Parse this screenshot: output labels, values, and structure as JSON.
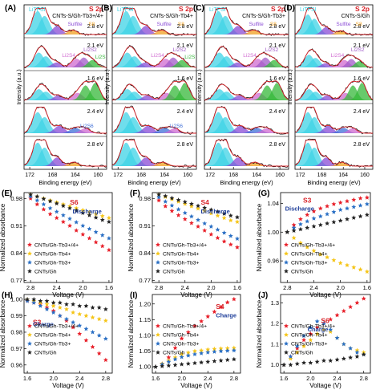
{
  "xps": {
    "ylabel": "Intensity (a.u.)",
    "xlabel": "Binding energy (eV)",
    "ticks": [
      "172",
      "168",
      "164",
      "160"
    ],
    "peak_labels": {
      "litfsi": "LiTFSI",
      "sulfite": "Sulfite",
      "s8": "S8",
      "li2s6": "Li2S6",
      "li2s4": "Li2S4",
      "li2s2": "Li2S2",
      "li2s": "Li2S"
    },
    "panels": [
      {
        "label": "(A)",
        "title": "S 2p",
        "sample": "CNTs-S/Gh-Tb3+/4+",
        "voltages": [
          "2.8 eV",
          "2.1 eV",
          "1.6 eV",
          "2.4 eV",
          "2.8 eV"
        ]
      },
      {
        "label": "(B)",
        "title": "S 2p",
        "sample": "CNTs-S/Gh-Tb4+",
        "voltages": [
          "2.8 eV",
          "2.1 eV",
          "1.6 eV",
          "2.4 eV",
          "2.8 eV"
        ]
      },
      {
        "label": "(C)",
        "title": "S 2p",
        "sample": "CNTs-S/Gh-Tb3+",
        "voltages": [
          "2.8 eV",
          "2.1 eV",
          "1.6 eV",
          "2.4 eV",
          "2.8 eV"
        ]
      },
      {
        "label": "(D)",
        "title": "S 2p",
        "sample": "CNTs-S/Gh",
        "voltages": [
          "2.8 eV",
          "2.1 eV",
          "1.6 eV",
          "2.4 eV",
          "2.8 eV"
        ]
      }
    ]
  },
  "colors": {
    "tb34": "#e8202a",
    "tb4": "#f5c518",
    "tb3": "#2a6fc4",
    "gh": "#222222",
    "litfsi": "#3fd3e6",
    "sulfite": "#8a4bd6",
    "s8": "#f0a020",
    "li2s6": "#3f6fd8",
    "li2s4": "#d06ad0",
    "li2s2": "#a05ac8",
    "li2s": "#36b83a"
  },
  "legend_labels": [
    "CNTs/Gh-Tb3+/4+",
    "CNTs/Gh-Tb4+",
    "CNTs/Gh-Tb3+",
    "CNTs/Gh"
  ],
  "chart_data": [
    {
      "label": "(E)",
      "type": "scatter",
      "ion": "S6",
      "process": "Discharge",
      "xlabel": "Voltage (V)",
      "ylabel": "Normalized absorbance",
      "xlim": [
        2.9,
        1.55
      ],
      "ylim": [
        0.765,
        0.995
      ],
      "xticks": [
        2.8,
        2.4,
        2.0,
        1.6
      ],
      "yticks": [
        0.77,
        0.84,
        0.91,
        0.98
      ],
      "series": [
        {
          "name": "CNTs/Gh-Tb3+/4+",
          "x": [
            2.8,
            2.7,
            2.6,
            2.5,
            2.4,
            2.3,
            2.2,
            2.1,
            2.0,
            1.9,
            1.8,
            1.7,
            1.6
          ],
          "y": [
            0.98,
            0.965,
            0.952,
            0.94,
            0.93,
            0.92,
            0.91,
            0.898,
            0.888,
            0.878,
            0.868,
            0.858,
            0.848
          ]
        },
        {
          "name": "CNTs/Gh-Tb4+",
          "x": [
            2.8,
            2.7,
            2.6,
            2.5,
            2.4,
            2.3,
            2.2,
            2.1,
            2.0,
            1.9,
            1.8,
            1.7,
            1.6
          ],
          "y": [
            0.99,
            0.985,
            0.98,
            0.975,
            0.97,
            0.965,
            0.96,
            0.955,
            0.95,
            0.945,
            0.94,
            0.935,
            0.93
          ]
        },
        {
          "name": "CNTs/Gh-Tb3+",
          "x": [
            2.8,
            2.7,
            2.6,
            2.5,
            2.4,
            2.3,
            2.2,
            2.1,
            2.0,
            1.9,
            1.8,
            1.7,
            1.6
          ],
          "y": [
            0.985,
            0.975,
            0.965,
            0.955,
            0.946,
            0.937,
            0.928,
            0.919,
            0.91,
            0.902,
            0.894,
            0.886,
            0.878
          ]
        },
        {
          "name": "CNTs/Gh",
          "x": [
            2.8,
            2.7,
            2.6,
            2.5,
            2.4,
            2.3,
            2.2,
            2.1,
            2.0,
            1.9,
            1.8,
            1.7,
            1.6
          ],
          "y": [
            0.99,
            0.985,
            0.979,
            0.973,
            0.967,
            0.961,
            0.955,
            0.949,
            0.943,
            0.937,
            0.931,
            0.925,
            0.92
          ]
        }
      ]
    },
    {
      "label": "(F)",
      "type": "scatter",
      "ion": "S4",
      "process": "Discharge",
      "xlabel": "Voltage (V)",
      "ylabel": "Normalized absorbance",
      "xlim": [
        2.9,
        1.55
      ],
      "ylim": [
        0.765,
        0.995
      ],
      "xticks": [
        2.8,
        2.4,
        2.0,
        1.6
      ],
      "yticks": [
        0.77,
        0.84,
        0.91,
        0.98
      ],
      "series": [
        {
          "name": "CNTs/Gh-Tb3+/4+",
          "x": [
            2.8,
            2.7,
            2.6,
            2.5,
            2.4,
            2.3,
            2.2,
            2.1,
            2.0,
            1.9,
            1.8,
            1.7,
            1.6
          ],
          "y": [
            0.975,
            0.96,
            0.948,
            0.937,
            0.927,
            0.917,
            0.908,
            0.898,
            0.888,
            0.879,
            0.87,
            0.862,
            0.855
          ]
        },
        {
          "name": "CNTs/Gh-Tb4+",
          "x": [
            2.8,
            2.7,
            2.6,
            2.5,
            2.4,
            2.3,
            2.2,
            2.1,
            2.0,
            1.9,
            1.8,
            1.7,
            1.6
          ],
          "y": [
            0.99,
            0.984,
            0.978,
            0.972,
            0.966,
            0.96,
            0.954,
            0.948,
            0.942,
            0.936,
            0.93,
            0.924,
            0.92
          ]
        },
        {
          "name": "CNTs/Gh-Tb3+",
          "x": [
            2.8,
            2.7,
            2.6,
            2.5,
            2.4,
            2.3,
            2.2,
            2.1,
            2.0,
            1.9,
            1.8,
            1.7,
            1.6
          ],
          "y": [
            0.983,
            0.972,
            0.962,
            0.952,
            0.943,
            0.934,
            0.925,
            0.916,
            0.908,
            0.9,
            0.892,
            0.884,
            0.877
          ]
        },
        {
          "name": "CNTs/Gh",
          "x": [
            2.8,
            2.7,
            2.6,
            2.5,
            2.4,
            2.3,
            2.2,
            2.1,
            2.0,
            1.9,
            1.8,
            1.7,
            1.6
          ],
          "y": [
            0.99,
            0.986,
            0.981,
            0.976,
            0.971,
            0.966,
            0.961,
            0.956,
            0.951,
            0.946,
            0.941,
            0.936,
            0.932
          ]
        }
      ]
    },
    {
      "label": "(G)",
      "type": "scatter",
      "ion": "S3",
      "process": "Discharge",
      "xlabel": "Voltage (V)",
      "ylabel": "Normalized absorbance",
      "xlim": [
        2.9,
        1.55
      ],
      "ylim": [
        0.93,
        1.055
      ],
      "xticks": [
        2.8,
        2.4,
        2.0,
        1.6
      ],
      "yticks": [
        0.96,
        1.0,
        1.04
      ],
      "series": [
        {
          "name": "CNTs/Gh-Tb3+/4+",
          "x": [
            2.8,
            2.7,
            2.6,
            2.5,
            2.4,
            2.3,
            2.2,
            2.1,
            2.0,
            1.9,
            1.8,
            1.7,
            1.6
          ],
          "y": [
            1.0,
            1.01,
            1.018,
            1.024,
            1.029,
            1.033,
            1.036,
            1.039,
            1.041,
            1.043,
            1.045,
            1.047,
            1.048
          ]
        },
        {
          "name": "CNTs/Gh-Tb4+",
          "x": [
            2.8,
            2.7,
            2.6,
            2.5,
            2.4,
            2.3,
            2.2,
            2.1,
            2.0,
            1.9,
            1.8,
            1.7,
            1.6
          ],
          "y": [
            1.0,
            0.992,
            0.985,
            0.979,
            0.974,
            0.969,
            0.965,
            0.961,
            0.957,
            0.954,
            0.951,
            0.948,
            0.945
          ]
        },
        {
          "name": "CNTs/Gh-Tb3+",
          "x": [
            2.8,
            2.7,
            2.6,
            2.5,
            2.4,
            2.3,
            2.2,
            2.1,
            2.0,
            1.9,
            1.8,
            1.7,
            1.6
          ],
          "y": [
            1.0,
            1.006,
            1.011,
            1.015,
            1.019,
            1.022,
            1.025,
            1.028,
            1.031,
            1.033,
            1.035,
            1.037,
            1.039
          ]
        },
        {
          "name": "CNTs/Gh",
          "x": [
            2.8,
            2.7,
            2.6,
            2.5,
            2.4,
            2.3,
            2.2,
            2.1,
            2.0,
            1.9,
            1.8,
            1.7,
            1.6
          ],
          "y": [
            1.0,
            1.002,
            1.004,
            1.006,
            1.008,
            1.01,
            1.012,
            1.014,
            1.016,
            1.018,
            1.02,
            1.022,
            1.024
          ]
        }
      ]
    },
    {
      "label": "(H)",
      "type": "scatter",
      "ion": "S3",
      "process": "Charge",
      "xlabel": "Voltage (V)",
      "ylabel": "Normalized absorbance",
      "xlim": [
        1.55,
        2.9
      ],
      "ylim": [
        0.955,
        1.003
      ],
      "xticks": [
        1.6,
        2.0,
        2.4,
        2.8
      ],
      "yticks": [
        0.96,
        0.97,
        0.98,
        0.99,
        1.0
      ],
      "series": [
        {
          "name": "CNTs/Gh-Tb3+/4+",
          "x": [
            1.6,
            1.7,
            1.8,
            1.9,
            2.0,
            2.1,
            2.2,
            2.3,
            2.4,
            2.5,
            2.6,
            2.7,
            2.8
          ],
          "y": [
            0.999,
            0.998,
            0.997,
            0.995,
            0.993,
            0.99,
            0.987,
            0.983,
            0.979,
            0.975,
            0.971,
            0.967,
            0.963
          ]
        },
        {
          "name": "CNTs/Gh-Tb4+",
          "x": [
            1.6,
            1.7,
            1.8,
            1.9,
            2.0,
            2.1,
            2.2,
            2.3,
            2.4,
            2.5,
            2.6,
            2.7,
            2.8
          ],
          "y": [
            1.0,
            0.999,
            0.998,
            0.997,
            0.996,
            0.995,
            0.994,
            0.992,
            0.991,
            0.99,
            0.989,
            0.988,
            0.987
          ]
        },
        {
          "name": "CNTs/Gh-Tb3+",
          "x": [
            1.6,
            1.7,
            1.8,
            1.9,
            2.0,
            2.1,
            2.2,
            2.3,
            2.4,
            2.5,
            2.6,
            2.7,
            2.8
          ],
          "y": [
            0.999,
            0.998,
            0.996,
            0.994,
            0.992,
            0.99,
            0.988,
            0.986,
            0.984,
            0.982,
            0.98,
            0.978,
            0.976
          ]
        },
        {
          "name": "CNTs/Gh",
          "x": [
            1.6,
            1.7,
            1.8,
            1.9,
            2.0,
            2.1,
            2.2,
            2.3,
            2.4,
            2.5,
            2.6,
            2.7,
            2.8
          ],
          "y": [
            1.0,
            1.0,
            0.999,
            0.999,
            0.998,
            0.998,
            0.997,
            0.997,
            0.996,
            0.996,
            0.995,
            0.995,
            0.994
          ]
        }
      ]
    },
    {
      "label": "(I)",
      "type": "scatter",
      "ion": "S4",
      "process": "Charge",
      "xlabel": "Voltage (V)",
      "ylabel": "Normalized absorbance",
      "xlim": [
        1.55,
        2.9
      ],
      "ylim": [
        0.98,
        1.23
      ],
      "xticks": [
        1.6,
        2.0,
        2.4,
        2.8
      ],
      "yticks": [
        1.0,
        1.05,
        1.1,
        1.15,
        1.2
      ],
      "series": [
        {
          "name": "CNTs/Gh-Tb3+/4+",
          "x": [
            1.6,
            1.7,
            1.8,
            1.9,
            2.0,
            2.1,
            2.2,
            2.3,
            2.4,
            2.5,
            2.6,
            2.7,
            2.8
          ],
          "y": [
            1.0,
            1.01,
            1.03,
            1.06,
            1.09,
            1.11,
            1.13,
            1.145,
            1.16,
            1.175,
            1.19,
            1.205,
            1.215
          ]
        },
        {
          "name": "CNTs/Gh-Tb4+",
          "x": [
            1.6,
            1.7,
            1.8,
            1.9,
            2.0,
            2.1,
            2.2,
            2.3,
            2.4,
            2.5,
            2.6,
            2.7,
            2.8
          ],
          "y": [
            1.0,
            1.01,
            1.02,
            1.03,
            1.04,
            1.045,
            1.05,
            1.052,
            1.055,
            1.057,
            1.058,
            1.059,
            1.06
          ]
        },
        {
          "name": "CNTs/Gh-Tb3+",
          "x": [
            1.6,
            1.7,
            1.8,
            1.9,
            2.0,
            2.1,
            2.2,
            2.3,
            2.4,
            2.5,
            2.6,
            2.7,
            2.8
          ],
          "y": [
            1.0,
            1.008,
            1.016,
            1.024,
            1.031,
            1.036,
            1.04,
            1.043,
            1.046,
            1.048,
            1.05,
            1.051,
            1.052
          ]
        },
        {
          "name": "CNTs/Gh",
          "x": [
            1.6,
            1.7,
            1.8,
            1.9,
            2.0,
            2.1,
            2.2,
            2.3,
            2.4,
            2.5,
            2.6,
            2.7,
            2.8
          ],
          "y": [
            1.0,
            1.002,
            1.004,
            1.006,
            1.008,
            1.01,
            1.012,
            1.014,
            1.016,
            1.018,
            1.02,
            1.022,
            1.024
          ]
        }
      ]
    },
    {
      "label": "(J)",
      "type": "scatter",
      "ion": "S6",
      "process": "Charge",
      "xlabel": "Voltage (V)",
      "ylabel": "Normalized absorbance",
      "xlim": [
        1.55,
        2.9
      ],
      "ylim": [
        0.96,
        1.34
      ],
      "xticks": [
        1.6,
        2.0,
        2.4,
        2.8
      ],
      "yticks": [
        1.0,
        1.1,
        1.2,
        1.3
      ],
      "series": [
        {
          "name": "CNTs/Gh-Tb3+/4+",
          "x": [
            1.6,
            1.7,
            1.8,
            1.9,
            2.0,
            2.1,
            2.2,
            2.3,
            2.4,
            2.5,
            2.6,
            2.7,
            2.8
          ],
          "y": [
            1.0,
            1.04,
            1.08,
            1.12,
            1.15,
            1.18,
            1.2,
            1.22,
            1.24,
            1.26,
            1.28,
            1.3,
            1.32
          ]
        },
        {
          "name": "CNTs/Gh-Tb4+",
          "x": [
            1.6,
            1.7,
            1.8,
            1.9,
            2.0,
            2.1,
            2.2,
            2.3,
            2.4,
            2.5,
            2.6,
            2.7,
            2.8
          ],
          "y": [
            1.0,
            1.03,
            1.06,
            1.09,
            1.12,
            1.15,
            1.17,
            1.16,
            1.13,
            1.1,
            1.08,
            1.07,
            1.06
          ]
        },
        {
          "name": "CNTs/Gh-Tb3+",
          "x": [
            1.6,
            1.7,
            1.8,
            1.9,
            2.0,
            2.1,
            2.2,
            2.3,
            2.4,
            2.5,
            2.6,
            2.7,
            2.8
          ],
          "y": [
            1.0,
            1.04,
            1.09,
            1.14,
            1.18,
            1.21,
            1.2,
            1.17,
            1.13,
            1.1,
            1.08,
            1.06,
            1.05
          ]
        },
        {
          "name": "CNTs/Gh",
          "x": [
            1.6,
            1.7,
            1.8,
            1.9,
            2.0,
            2.1,
            2.2,
            2.3,
            2.4,
            2.5,
            2.6,
            2.7,
            2.8
          ],
          "y": [
            1.0,
            1.0,
            1.005,
            1.01,
            1.01,
            1.015,
            1.02,
            1.02,
            1.025,
            1.03,
            1.035,
            1.04,
            1.05
          ]
        }
      ]
    }
  ]
}
